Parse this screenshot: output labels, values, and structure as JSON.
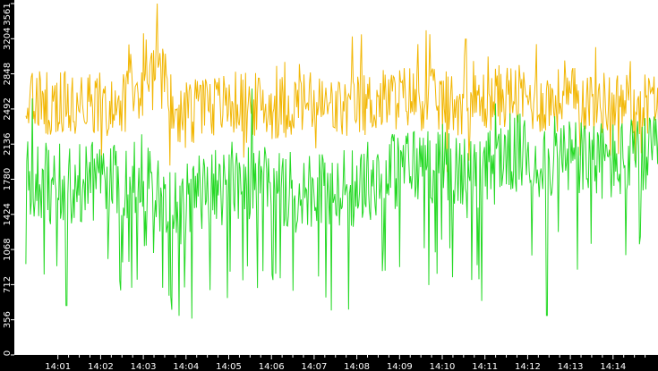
{
  "chart_data": {
    "type": "line",
    "title": "",
    "xlabel": "",
    "ylabel": "",
    "ylim": [
      0,
      3561
    ],
    "y_ticks": [
      "0",
      "356",
      "712",
      "1068",
      "1424",
      "1780",
      "2136",
      "2492",
      "2848",
      "3204",
      "3561"
    ],
    "x_ticks": [
      "14:01",
      "14:02",
      "14:03",
      "14:04",
      "14:05",
      "14:06",
      "14:07",
      "14:08",
      "14:09",
      "14:10",
      "14:11",
      "14:12",
      "14:13",
      "14:14"
    ],
    "x_range_minutes": [
      0.25,
      15.6
    ],
    "grid": false,
    "legend": "none",
    "series": [
      {
        "color": "#f2b705",
        "approx_mean": 2560,
        "approx_range": [
          1900,
          3561
        ],
        "profile": [
          [
            0.25,
            2560
          ],
          [
            1.0,
            2560
          ],
          [
            1.7,
            2550
          ],
          [
            2.4,
            2520
          ],
          [
            3.0,
            2750
          ],
          [
            3.5,
            2800
          ],
          [
            3.8,
            2400
          ],
          [
            4.6,
            2520
          ],
          [
            5.3,
            2560
          ],
          [
            6.0,
            2500
          ],
          [
            6.8,
            2560
          ],
          [
            7.6,
            2480
          ],
          [
            8.4,
            2560
          ],
          [
            9.2,
            2620
          ],
          [
            10.0,
            2560
          ],
          [
            10.8,
            2550
          ],
          [
            11.5,
            2640
          ],
          [
            12.3,
            2560
          ],
          [
            13.1,
            2600
          ],
          [
            13.9,
            2550
          ],
          [
            14.6,
            2550
          ],
          [
            15.3,
            2580
          ],
          [
            15.6,
            2450
          ]
        ],
        "extremes": [
          [
            3.32,
            3561
          ],
          [
            3.0,
            3260
          ],
          [
            2.7,
            3050
          ],
          [
            9.7,
            3250
          ],
          [
            10.55,
            3200
          ],
          [
            12.2,
            3150
          ],
          [
            13.6,
            3120
          ],
          [
            3.62,
            1920
          ],
          [
            5.35,
            2000
          ],
          [
            15.58,
            2350
          ]
        ]
      },
      {
        "color": "#26d926",
        "approx_mean": 1800,
        "approx_range": [
          0,
          2700
        ],
        "profile": [
          [
            0.25,
            1800
          ],
          [
            1.0,
            1720
          ],
          [
            1.7,
            1760
          ],
          [
            2.4,
            1720
          ],
          [
            3.0,
            1850
          ],
          [
            3.5,
            1600
          ],
          [
            3.8,
            1500
          ],
          [
            4.6,
            1700
          ],
          [
            5.3,
            1800
          ],
          [
            6.0,
            1760
          ],
          [
            6.8,
            1600
          ],
          [
            7.6,
            1650
          ],
          [
            8.4,
            1800
          ],
          [
            9.2,
            1920
          ],
          [
            10.0,
            1950
          ],
          [
            10.8,
            1750
          ],
          [
            11.5,
            2050
          ],
          [
            12.3,
            2000
          ],
          [
            13.1,
            2000
          ],
          [
            13.9,
            1950
          ],
          [
            14.6,
            2000
          ],
          [
            15.3,
            2000
          ],
          [
            15.6,
            1500
          ]
        ],
        "extremes": [
          [
            1.2,
            500
          ],
          [
            2.45,
            750
          ],
          [
            3.6,
            600
          ],
          [
            5.8,
            850
          ],
          [
            6.5,
            650
          ],
          [
            7.4,
            450
          ],
          [
            7.8,
            460
          ],
          [
            8.6,
            850
          ],
          [
            12.45,
            400
          ],
          [
            15.61,
            0
          ],
          [
            0.4,
            2600
          ],
          [
            5.55,
            2700
          ],
          [
            11.25,
            2550
          ],
          [
            15.4,
            2500
          ]
        ]
      }
    ]
  }
}
